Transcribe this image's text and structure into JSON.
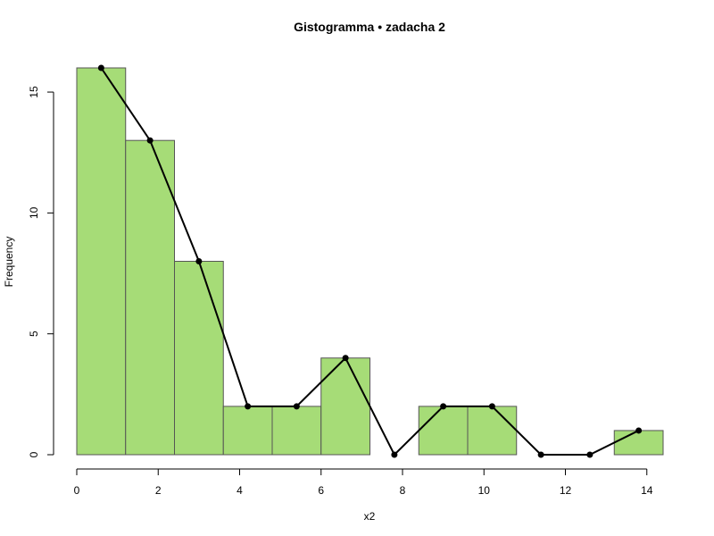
{
  "chart_data": {
    "type": "bar",
    "title": "Gistogramma • zadacha 2",
    "xlabel": "x2",
    "ylabel": "Frequency",
    "bin_edges": [
      0,
      1.2,
      2.4,
      3.6,
      4.8,
      6.0,
      7.2,
      8.4,
      9.6,
      10.8,
      12.0,
      13.2,
      14.4
    ],
    "values": [
      16,
      13,
      8,
      2,
      2,
      4,
      0,
      2,
      2,
      0,
      0,
      1
    ],
    "polygon": {
      "x": [
        0.6,
        1.8,
        3.0,
        4.2,
        5.4,
        6.6,
        7.8,
        9.0,
        10.2,
        11.4,
        12.6,
        13.8
      ],
      "y": [
        16,
        13,
        8,
        2,
        2,
        4,
        0,
        2,
        2,
        0,
        0,
        1
      ]
    },
    "xlim": [
      0,
      14.4
    ],
    "ylim": [
      0,
      16
    ],
    "xticks": [
      0,
      2,
      4,
      6,
      8,
      10,
      12,
      14
    ],
    "yticks": [
      0,
      5,
      10,
      15
    ],
    "grid": false,
    "legend": "none",
    "colors": {
      "bar_fill": "#a6dc77",
      "bar_stroke": "#555555",
      "line": "#000000"
    }
  }
}
